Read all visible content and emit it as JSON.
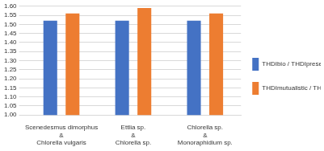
{
  "chart_data": {
    "type": "bar",
    "categories": [
      "Scenedesmus dimorphus & Chlorella vulgaris",
      "Ettlia sp. & Chlorella sp.",
      "Chlorella sp. & Monoraphidium sp."
    ],
    "series": [
      {
        "name": "THDIbio / THDIpresent",
        "color": "#4472c4",
        "values": [
          1.52,
          1.52,
          1.52
        ]
      },
      {
        "name": "THDImutualistic / THDIpresent",
        "color": "#ed7d31",
        "values": [
          1.56,
          1.59,
          1.56
        ]
      }
    ],
    "ylim": [
      1.0,
      1.6
    ],
    "yticks": [
      {
        "value": 1.0,
        "label": "1.00"
      },
      {
        "value": 1.05,
        "label": "1.05"
      },
      {
        "value": 1.1,
        "label": "1.10"
      },
      {
        "value": 1.15,
        "label": "1.15"
      },
      {
        "value": 1.2,
        "label": "1.20"
      },
      {
        "value": 1.25,
        "label": "1.25"
      },
      {
        "value": 1.3,
        "label": "1.30"
      },
      {
        "value": 1.35,
        "label": "1.35"
      },
      {
        "value": 1.4,
        "label": "1.40"
      },
      {
        "value": 1.45,
        "label": "1.45"
      },
      {
        "value": 1.5,
        "label": "1.50"
      },
      {
        "value": 1.55,
        "label": "1.55"
      },
      {
        "value": 1.6,
        "label": "1.60"
      }
    ],
    "grid": true,
    "legend": "right"
  }
}
